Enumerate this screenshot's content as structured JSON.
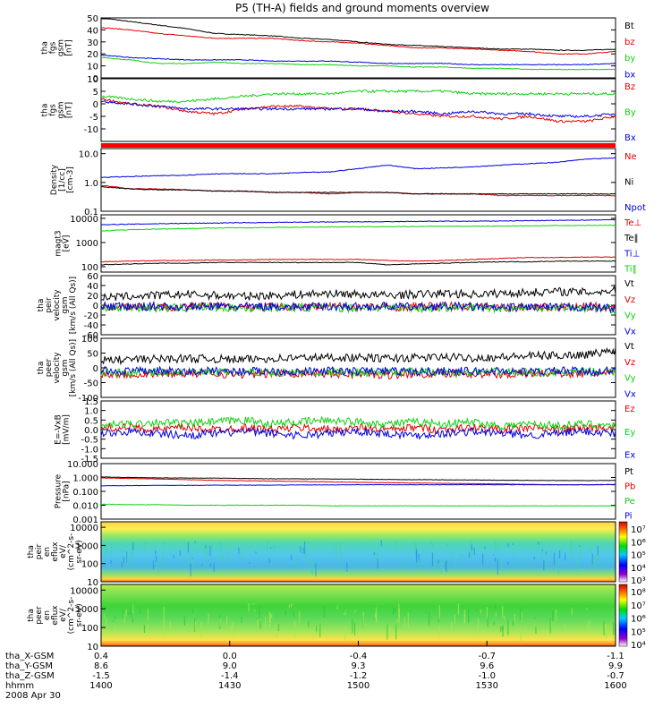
{
  "title": "P5 (TH-A) fields and ground moments overview",
  "chart_data": {
    "type": "line",
    "x_range": [
      "14:00",
      "16:00"
    ],
    "panels": [
      {
        "ylabel": [
          "tha",
          "fgs",
          "gsm",
          "[nT]"
        ],
        "ylim": [
          0,
          50
        ],
        "ticks": [
          "50",
          "40",
          "30",
          "20",
          "10",
          "0"
        ],
        "scale": "linear",
        "series": [
          {
            "name": "Bt",
            "color": "#000000",
            "values": [
              50,
              47,
              44,
              41,
              37,
              36,
              35,
              33,
              32,
              30,
              28,
              27,
              26,
              25,
              24,
              24,
              23,
              23,
              24
            ]
          },
          {
            "name": "bz",
            "color": "#e00000",
            "values": [
              42,
              40,
              37,
              35,
              33,
              33,
              33,
              31,
              30,
              29,
              27,
              25,
              25,
              24,
              23,
              22,
              20,
              20,
              22
            ]
          },
          {
            "name": "by",
            "color": "#10d010",
            "values": [
              17,
              15,
              12,
              12,
              13,
              12,
              12,
              11,
              11,
              10,
              10,
              9,
              9,
              8,
              8,
              7,
              7,
              7,
              7
            ]
          },
          {
            "name": "bx",
            "color": "#0000e0",
            "values": [
              19,
              17,
              16,
              15,
              15,
              15,
              14,
              14,
              14,
              13,
              12,
              12,
              12,
              11,
              11,
              11,
              11,
              11,
              12
            ]
          }
        ]
      },
      {
        "ylabel": [
          "tha",
          "fgs",
          "gsm",
          "[nT]"
        ],
        "ylim": [
          -15,
          10
        ],
        "ticks": [
          "10",
          "5",
          "0",
          "-5",
          "-10"
        ],
        "scale": "linear",
        "series": [
          {
            "name": "Bz",
            "color": "#e00000",
            "values": [
              2,
              0,
              -1,
              -3,
              -4,
              -2,
              -1,
              -1,
              -2,
              -2,
              -3,
              -4,
              -5,
              -5,
              -6,
              -5,
              -7,
              -7,
              -5
            ]
          },
          {
            "name": "By",
            "color": "#10d010",
            "values": [
              3,
              2,
              1,
              1,
              2,
              3,
              4,
              4,
              4,
              5,
              5,
              5,
              5,
              4,
              4,
              4,
              4,
              4,
              4
            ]
          },
          {
            "name": "Bx",
            "color": "#0000e0",
            "values": [
              1,
              0,
              -1,
              -2,
              -2,
              -2,
              -2,
              -2,
              -2,
              -2,
              -3,
              -3,
              -4,
              -3,
              -4,
              -4,
              -5,
              -5,
              -4
            ]
          }
        ]
      },
      {
        "ylabel": [
          "Density",
          "[1/cc]",
          "[cm-3]"
        ],
        "ylim": [
          0.1,
          15
        ],
        "ticks": [
          "10.0",
          "1.0",
          "0.1"
        ],
        "scale": "log",
        "series": [
          {
            "name": "Ne",
            "color": "#e00000",
            "values": [
              0.8,
              0.6,
              0.6,
              0.55,
              0.5,
              0.5,
              0.45,
              0.45,
              0.4,
              0.45,
              0.45,
              0.4,
              0.4,
              0.4,
              0.35,
              0.35,
              0.35,
              0.35,
              0.35
            ]
          },
          {
            "name": "Ni",
            "color": "#000000",
            "values": [
              0.7,
              0.6,
              0.55,
              0.55,
              0.5,
              0.5,
              0.45,
              0.45,
              0.45,
              0.45,
              0.45,
              0.4,
              0.4,
              0.4,
              0.4,
              0.4,
              0.4,
              0.4,
              0.4
            ]
          },
          {
            "name": "Npot",
            "color": "#0000e0",
            "values": [
              1.5,
              1.6,
              1.7,
              1.8,
              2.0,
              2.0,
              2.0,
              2.2,
              2.3,
              3.0,
              4.0,
              3.0,
              3.2,
              3.5,
              4.0,
              4.5,
              5.0,
              6.5,
              7.0
            ]
          }
        ]
      },
      {
        "ylabel": [
          "magt3",
          "[eV]"
        ],
        "ylim": [
          60,
          14000
        ],
        "ticks": [
          "10000",
          "1000",
          "100"
        ],
        "scale": "log",
        "series": [
          {
            "name": "Te⊥",
            "color": "#e00000",
            "values": [
              160,
              170,
              180,
              180,
              190,
              190,
              200,
              200,
              200,
              200,
              180,
              170,
              180,
              200,
              220,
              240,
              240,
              250,
              250
            ]
          },
          {
            "name": "Te‖",
            "color": "#000000",
            "values": [
              120,
              130,
              140,
              140,
              150,
              150,
              150,
              150,
              150,
              150,
              120,
              130,
              140,
              150,
              160,
              160,
              170,
              170,
              170
            ]
          },
          {
            "name": "Ti⊥",
            "color": "#0000e0",
            "values": [
              5500,
              5700,
              6000,
              6200,
              6400,
              6600,
              6700,
              7000,
              7000,
              7200,
              7200,
              7500,
              7600,
              7600,
              7800,
              8000,
              8200,
              8500,
              8800
            ]
          },
          {
            "name": "Ti‖",
            "color": "#10d010",
            "values": [
              3000,
              3400,
              3600,
              3800,
              4000,
              4100,
              4200,
              4300,
              4400,
              4500,
              4500,
              4600,
              4700,
              4700,
              4800,
              4900,
              5000,
              5100,
              5200
            ]
          }
        ]
      },
      {
        "ylabel": [
          "tha",
          "peir",
          "velocity",
          "gsm",
          "[km/s (All Qs)]"
        ],
        "ylim": [
          -60,
          60
        ],
        "ticks": [
          "60",
          "40",
          "20",
          "0",
          "-20",
          "-40",
          "-60"
        ],
        "scale": "linear",
        "series": [
          {
            "name": "Vt",
            "color": "#000000",
            "values": [
              15,
              18,
              20,
              22,
              20,
              18,
              20,
              22,
              24,
              22,
              20,
              22,
              24,
              22,
              24,
              26,
              28,
              26,
              30
            ]
          },
          {
            "name": "Vz",
            "color": "#e00000",
            "values": [
              -3,
              -2,
              -4,
              -3,
              -2,
              -3,
              -4,
              -3,
              -2,
              -3,
              -4,
              -3,
              -2,
              -3,
              -4,
              -3,
              -4,
              -3,
              -4
            ]
          },
          {
            "name": "Vy",
            "color": "#10d010",
            "values": [
              -5,
              -4,
              -6,
              -5,
              -4,
              -6,
              -5,
              -4,
              -6,
              -5,
              -4,
              -6,
              -5,
              -4,
              -6,
              -5,
              -4,
              -6,
              -8
            ]
          },
          {
            "name": "Vx",
            "color": "#0000e0",
            "values": [
              -2,
              -3,
              -2,
              -4,
              -2,
              -3,
              -2,
              -4,
              -2,
              -3,
              -2,
              -4,
              -2,
              -3,
              -6,
              -3,
              -5,
              -4,
              -6
            ]
          }
        ]
      },
      {
        "ylabel": [
          "tha",
          "peer",
          "velocity",
          "gsm",
          "[km/s (All Qs)]"
        ],
        "ylim": [
          -100,
          100
        ],
        "ticks": [
          "100",
          "50",
          "0",
          "-50",
          "-100"
        ],
        "scale": "linear",
        "series": [
          {
            "name": "Vt",
            "color": "#000000",
            "values": [
              25,
              28,
              30,
              32,
              30,
              28,
              32,
              34,
              36,
              34,
              32,
              34,
              36,
              34,
              36,
              40,
              42,
              45,
              60
            ]
          },
          {
            "name": "Vz",
            "color": "#e00000",
            "values": [
              -20,
              -22,
              -20,
              -18,
              -20,
              -22,
              -20,
              -18,
              -20,
              -22,
              -24,
              -20,
              -18,
              -20,
              -22,
              -20,
              -18,
              -20,
              -20
            ]
          },
          {
            "name": "Vy",
            "color": "#10d010",
            "values": [
              -15,
              -16,
              -14,
              -15,
              -16,
              -14,
              -15,
              -16,
              -14,
              -15,
              -16,
              -14,
              -15,
              -16,
              -14,
              -15,
              -16,
              -14,
              -15
            ]
          },
          {
            "name": "Vx",
            "color": "#0000e0",
            "values": [
              -10,
              -12,
              -10,
              -14,
              -10,
              -12,
              -10,
              -14,
              -10,
              -12,
              -10,
              -14,
              -10,
              -12,
              -10,
              -14,
              -10,
              -12,
              -10
            ]
          }
        ]
      },
      {
        "ylabel": [
          "E=-VxB",
          "[mV/m]"
        ],
        "ylim": [
          -1.5,
          1.5
        ],
        "ticks": [
          "1.5",
          "1.0",
          "0.5",
          "0.0",
          "-0.5",
          "-1.0",
          "-1.5"
        ],
        "scale": "linear",
        "series": [
          {
            "name": "Ez",
            "color": "#e00000",
            "values": [
              0.1,
              0.1,
              0.0,
              0.1,
              0.0,
              0.1,
              0.0,
              0.1,
              0.0,
              0.1,
              0.0,
              0.1,
              0.0,
              0.1,
              0.0,
              0.1,
              0.0,
              0.1,
              0.1
            ]
          },
          {
            "name": "Ey",
            "color": "#10d010",
            "values": [
              0.2,
              0.3,
              0.4,
              0.3,
              0.4,
              0.5,
              0.3,
              0.4,
              0.5,
              0.4,
              0.3,
              0.4,
              0.3,
              0.4,
              0.2,
              0.3,
              0.2,
              0.3,
              0.2
            ]
          },
          {
            "name": "Ex",
            "color": "#0000e0",
            "values": [
              -0.2,
              -0.1,
              -0.2,
              -0.3,
              -0.2,
              -0.1,
              -0.2,
              -0.3,
              -0.2,
              -0.1,
              -0.2,
              -0.3,
              -0.2,
              -0.1,
              -0.2,
              -0.3,
              -0.2,
              -0.1,
              -0.2
            ]
          }
        ]
      },
      {
        "ylabel": [
          "Pressure",
          "[nPa]"
        ],
        "ylim": [
          0.001,
          10
        ],
        "ticks": [
          "10.000",
          "1.000",
          "0.100",
          "0.010",
          "0.001"
        ],
        "scale": "log",
        "series": [
          {
            "name": "Pt",
            "color": "#000000",
            "values": [
              1.1,
              1.0,
              0.95,
              0.9,
              0.9,
              0.85,
              0.8,
              0.8,
              0.78,
              0.75,
              0.72,
              0.7,
              0.68,
              0.66,
              0.64,
              0.62,
              0.6,
              0.6,
              0.62
            ]
          },
          {
            "name": "Pb",
            "color": "#e00000",
            "values": [
              0.95,
              0.85,
              0.78,
              0.7,
              0.62,
              0.58,
              0.55,
              0.52,
              0.48,
              0.45,
              0.42,
              0.4,
              0.38,
              0.36,
              0.34,
              0.32,
              0.3,
              0.3,
              0.32
            ]
          },
          {
            "name": "Pe",
            "color": "#10d010",
            "values": [
              0.012,
              0.011,
              0.011,
              0.01,
              0.01,
              0.01,
              0.01,
              0.01,
              0.009,
              0.009,
              0.009,
              0.009,
              0.009,
              0.009,
              0.009,
              0.009,
              0.009,
              0.009,
              0.009
            ]
          },
          {
            "name": "Pi",
            "color": "#0000e0",
            "values": [
              0.25,
              0.26,
              0.27,
              0.27,
              0.28,
              0.28,
              0.28,
              0.29,
              0.29,
              0.3,
              0.3,
              0.3,
              0.3,
              0.3,
              0.3,
              0.3,
              0.3,
              0.3,
              0.3
            ]
          }
        ]
      }
    ],
    "spectrograms": [
      {
        "type": "heatmap",
        "ylabel": [
          "tha",
          "peir",
          "en",
          "eflux",
          "eV/",
          "(cm^2-s-",
          "sr-eV)"
        ],
        "ylim": [
          10,
          20000
        ],
        "ticks": [
          "10000",
          "1000",
          "100",
          "10"
        ],
        "colorbar_ticks": [
          "10⁷",
          "10⁶",
          "10⁵",
          "10⁴",
          "10³"
        ]
      },
      {
        "type": "heatmap",
        "ylabel": [
          "tha",
          "peer",
          "en",
          "eflux",
          "eV/",
          "(cm^2-s-",
          "sr-eV)"
        ],
        "ylim": [
          10,
          20000
        ],
        "ticks": [
          "10000",
          "1000",
          "100",
          "10"
        ],
        "colorbar_ticks": [
          "10⁸",
          "10⁷",
          "10⁶",
          "10⁵",
          "10⁴"
        ]
      }
    ],
    "x_axis": {
      "rows": [
        {
          "label": "tha_X-GSM",
          "values": [
            "0.4",
            "0.0",
            "-0.4",
            "-0.7",
            "-1.1"
          ]
        },
        {
          "label": "tha_Y-GSM",
          "values": [
            "8.6",
            "9.0",
            "9.3",
            "9.6",
            "9.9"
          ]
        },
        {
          "label": "tha_Z-GSM",
          "values": [
            "-1.5",
            "-1.4",
            "-1.2",
            "-1.0",
            "-0.7"
          ]
        },
        {
          "label": "hhmm",
          "values": [
            "1400",
            "1430",
            "1500",
            "1530",
            "1600"
          ]
        }
      ],
      "date": "2008 Apr 30"
    }
  }
}
